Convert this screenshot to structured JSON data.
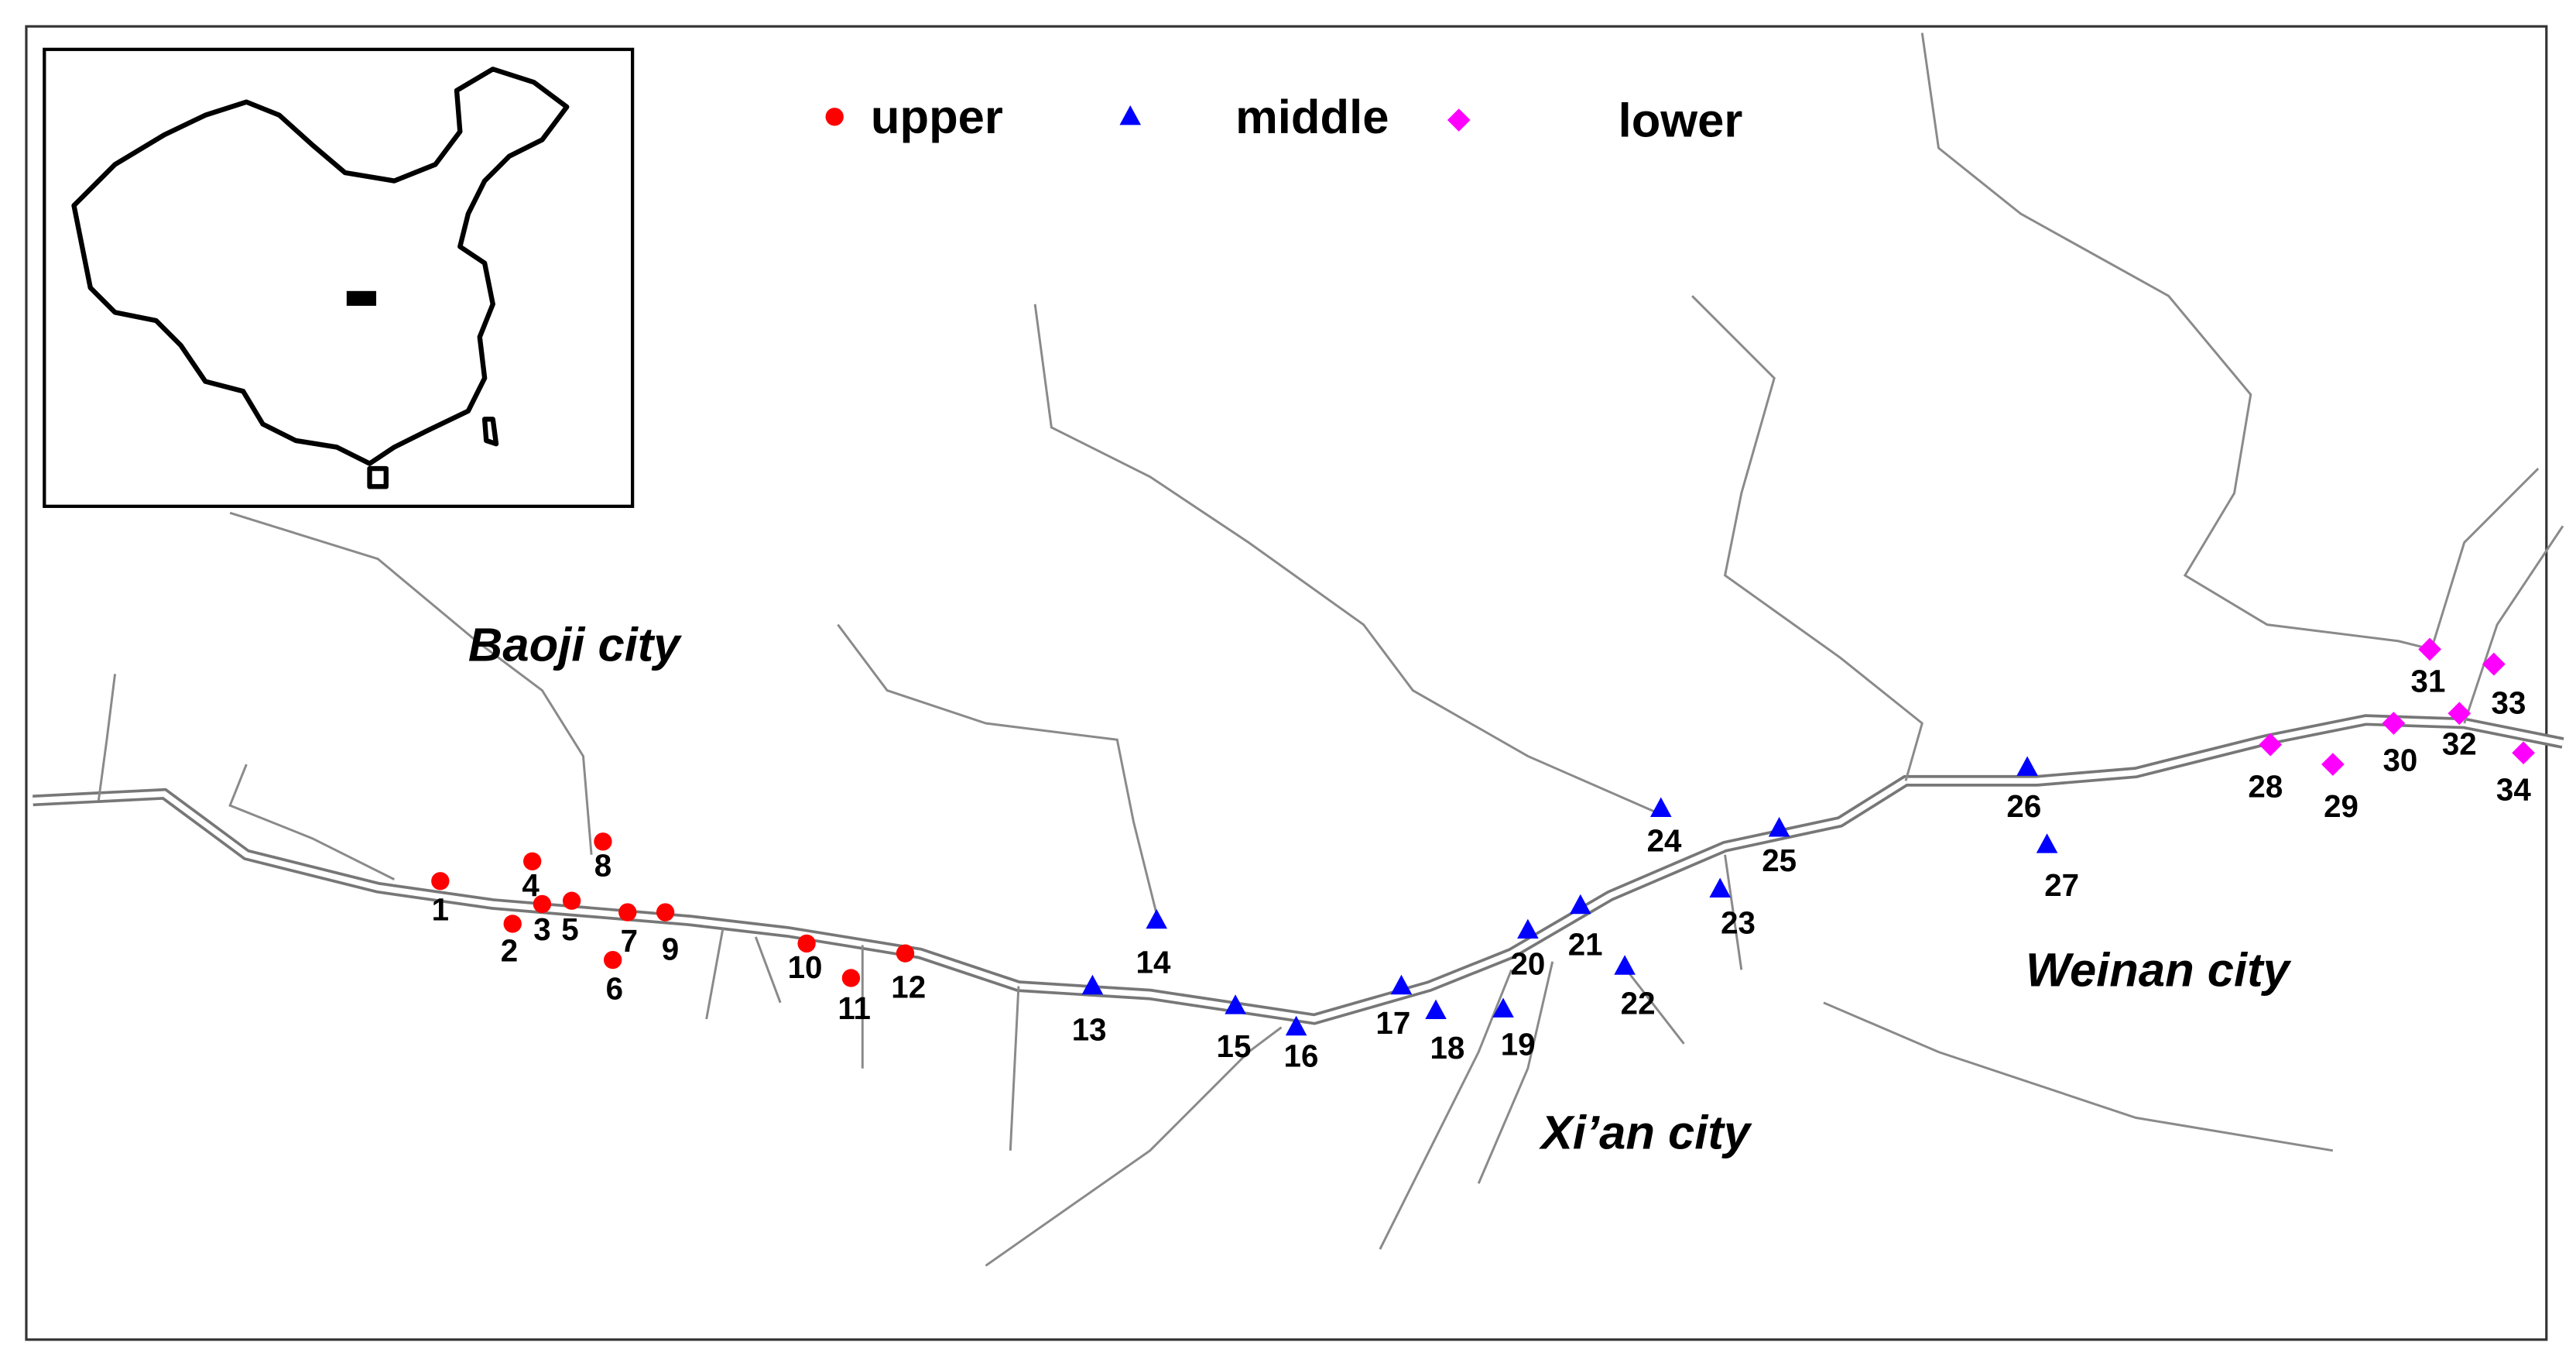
{
  "legend": {
    "groups": [
      {
        "name": "upper",
        "color": "#ff0000",
        "shape": "circle",
        "sites": [
          "1",
          "2",
          "3",
          "4",
          "5",
          "6",
          "7",
          "8",
          "9",
          "10",
          "11",
          "12"
        ]
      },
      {
        "name": "middle",
        "color": "#0000ff",
        "shape": "triangle",
        "sites": [
          "13",
          "14",
          "15",
          "16",
          "17",
          "18",
          "19",
          "20",
          "21",
          "22",
          "23",
          "24",
          "25",
          "26",
          "27"
        ]
      },
      {
        "name": "lower",
        "color": "#ff00ff",
        "shape": "diamond",
        "sites": [
          "28",
          "29",
          "30",
          "31",
          "32",
          "33",
          "34"
        ]
      }
    ]
  },
  "cities": [
    "Baoji city",
    "Xi’an city",
    "Weinan city"
  ]
}
